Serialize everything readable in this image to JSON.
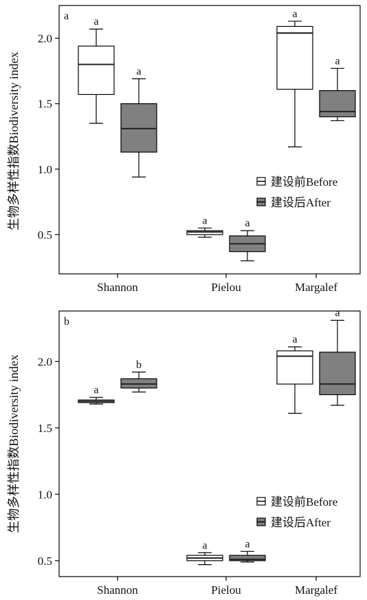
{
  "chart_data": [
    {
      "type": "box",
      "panel_label": "a",
      "ylabel": "生物多样性指数Biodiversity index",
      "yticks": [
        "0.5",
        "1.0",
        "1.5",
        "2.0"
      ],
      "ylim": [
        0.2,
        2.25
      ],
      "categories": [
        "Shannon",
        "Pielou",
        "Margalef"
      ],
      "legend": {
        "placement": "center-right",
        "entries": [
          "建设前Before",
          "建设后After"
        ]
      },
      "series": [
        {
          "name": "建设前Before",
          "color": "#ffffff",
          "boxes": [
            {
              "min": 1.35,
              "q1": 1.57,
              "median": 1.8,
              "q3": 1.94,
              "max": 2.07,
              "sig": "a"
            },
            {
              "min": 0.48,
              "q1": 0.5,
              "median": 0.52,
              "q3": 0.53,
              "max": 0.55,
              "sig": "a"
            },
            {
              "min": 1.17,
              "q1": 1.61,
              "median": 2.04,
              "q3": 2.09,
              "max": 2.13,
              "sig": "a"
            }
          ]
        },
        {
          "name": "建设后After",
          "color": "#808080",
          "boxes": [
            {
              "min": 0.94,
              "q1": 1.13,
              "median": 1.31,
              "q3": 1.5,
              "max": 1.69,
              "sig": "a"
            },
            {
              "min": 0.3,
              "q1": 0.37,
              "median": 0.43,
              "q3": 0.49,
              "max": 0.53,
              "sig": "a"
            },
            {
              "min": 1.37,
              "q1": 1.4,
              "median": 1.44,
              "q3": 1.6,
              "max": 1.77,
              "sig": "a"
            }
          ]
        }
      ]
    },
    {
      "type": "box",
      "panel_label": "b",
      "ylabel": "生物多样性指数Biodiversity index",
      "yticks": [
        "0.5",
        "1.0",
        "1.5",
        "2.0"
      ],
      "ylim": [
        0.38,
        2.38
      ],
      "categories": [
        "Shannon",
        "Pielou",
        "Margalef"
      ],
      "legend": {
        "placement": "center-right",
        "entries": [
          "建设前Before",
          "建设后After"
        ]
      },
      "series": [
        {
          "name": "建设前Before",
          "color": "#ffffff",
          "boxes": [
            {
              "min": 1.68,
              "q1": 1.69,
              "median": 1.7,
              "q3": 1.71,
              "max": 1.73,
              "sig": "a"
            },
            {
              "min": 0.47,
              "q1": 0.5,
              "median": 0.52,
              "q3": 0.54,
              "max": 0.56,
              "sig": "a"
            },
            {
              "min": 1.61,
              "q1": 1.83,
              "median": 2.04,
              "q3": 2.08,
              "max": 2.11,
              "sig": "a"
            }
          ]
        },
        {
          "name": "建设后After",
          "color": "#808080",
          "boxes": [
            {
              "min": 1.77,
              "q1": 1.8,
              "median": 1.83,
              "q3": 1.87,
              "max": 1.92,
              "sig": "b"
            },
            {
              "min": 0.49,
              "q1": 0.5,
              "median": 0.51,
              "q3": 0.54,
              "max": 0.57,
              "sig": "a"
            },
            {
              "min": 1.67,
              "q1": 1.75,
              "median": 1.83,
              "q3": 2.07,
              "max": 2.31,
              "sig": "a"
            }
          ]
        }
      ]
    }
  ]
}
